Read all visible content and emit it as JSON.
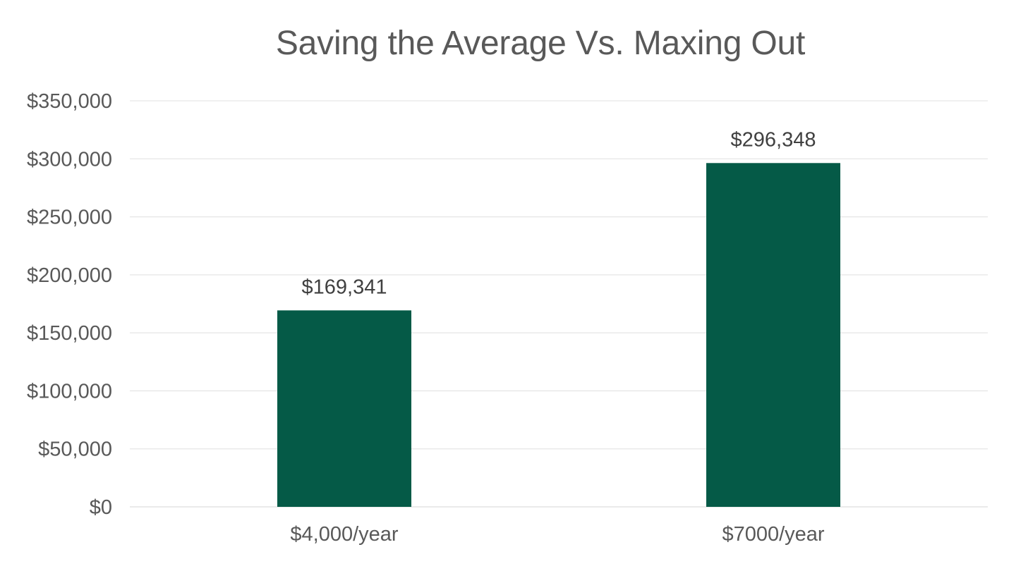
{
  "chart_data": {
    "type": "bar",
    "title": "Saving the Average Vs. Maxing Out",
    "categories": [
      "$4,000/year",
      "$7000/year"
    ],
    "values": [
      169341,
      296348
    ],
    "data_labels": [
      "$169,341",
      "$296,348"
    ],
    "ylim": [
      0,
      350000
    ],
    "yticks": [
      0,
      50000,
      100000,
      150000,
      200000,
      250000,
      300000,
      350000
    ],
    "ytick_labels": [
      "$0",
      "$50,000",
      "$100,000",
      "$150,000",
      "$200,000",
      "$250,000",
      "$300,000",
      "$350,000"
    ],
    "xlabel": "",
    "ylabel": "",
    "grid": true,
    "legend": "none",
    "colors": {
      "bar": "#055a47",
      "gridline": "#e6e6e6",
      "axis_text": "#595959",
      "label_text": "#404040"
    }
  }
}
